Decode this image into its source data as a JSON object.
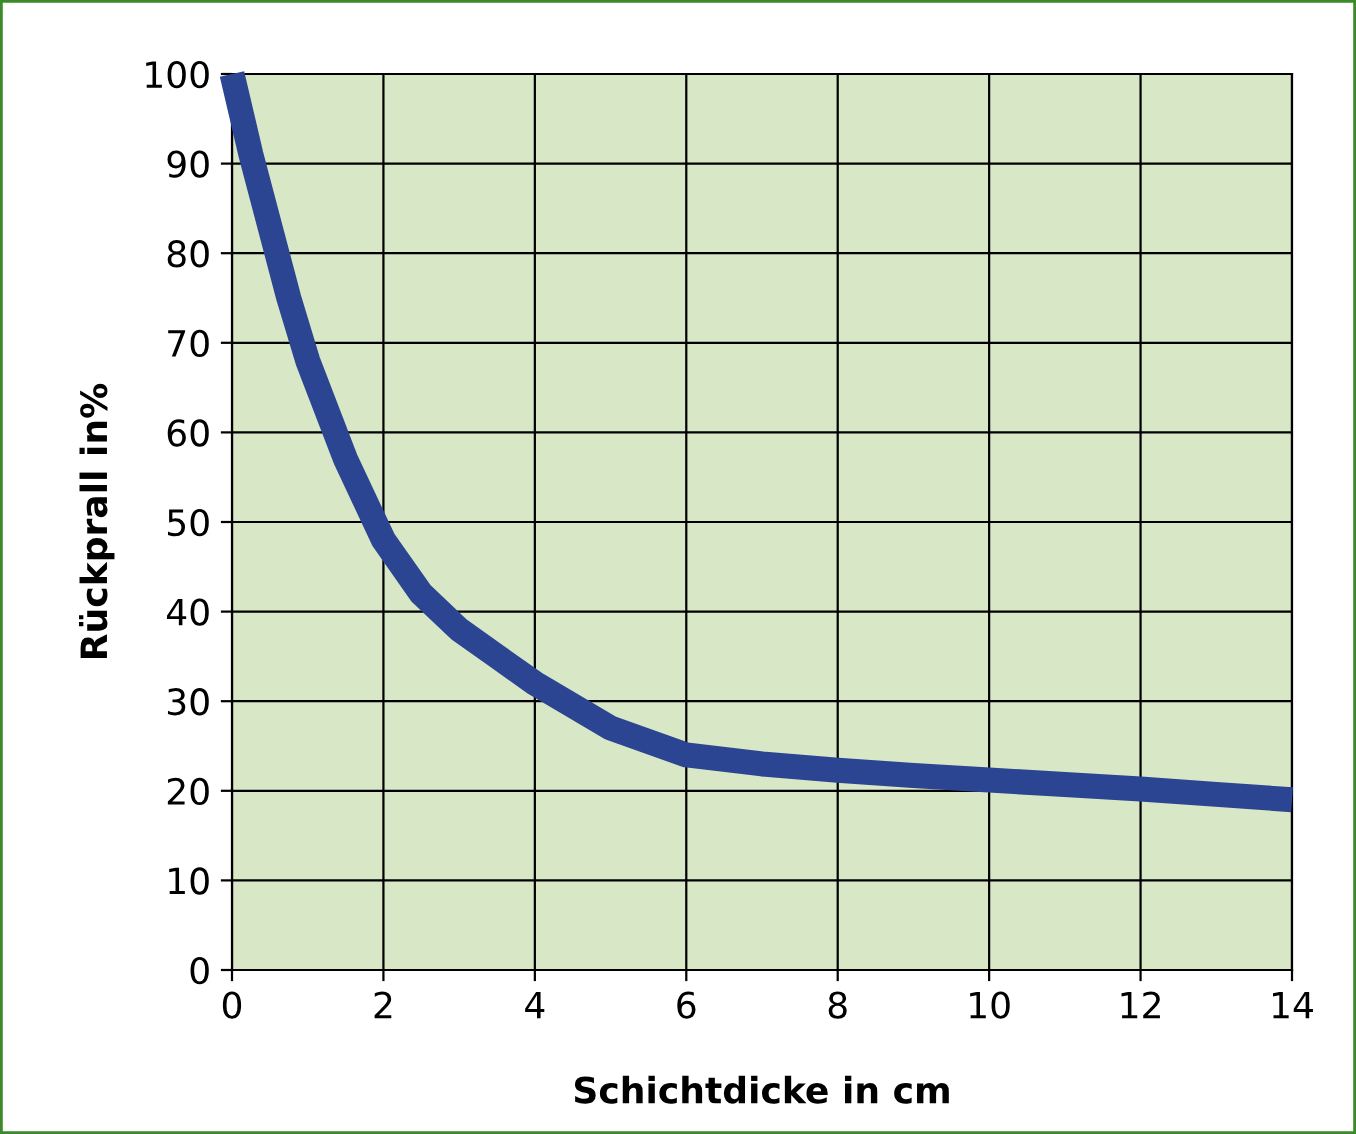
{
  "chart_data": {
    "type": "line",
    "xlabel": "Schichtdicke in cm",
    "ylabel": "Rückprall in%",
    "x": [
      0,
      0.25,
      0.5,
      0.75,
      1,
      1.5,
      2,
      2.5,
      3,
      3.5,
      4,
      5,
      6,
      7,
      8,
      9,
      10,
      11,
      12,
      13,
      14
    ],
    "series": [
      {
        "color": "#2b4593",
        "values": [
          100,
          91,
          83,
          75,
          68,
          57,
          48,
          42,
          38,
          35,
          32,
          27,
          24,
          23,
          22.3,
          21.7,
          21.2,
          20.7,
          20.2,
          19.6,
          19
        ]
      }
    ],
    "xlim": [
      0,
      14
    ],
    "xticks": [
      0,
      2,
      4,
      6,
      8,
      10,
      12,
      14
    ],
    "ylim": [
      0,
      100
    ],
    "yticks": [
      0,
      10,
      20,
      30,
      40,
      50,
      60,
      70,
      80,
      90,
      100
    ],
    "grid": true,
    "marker": "none",
    "line_style": "solid"
  }
}
